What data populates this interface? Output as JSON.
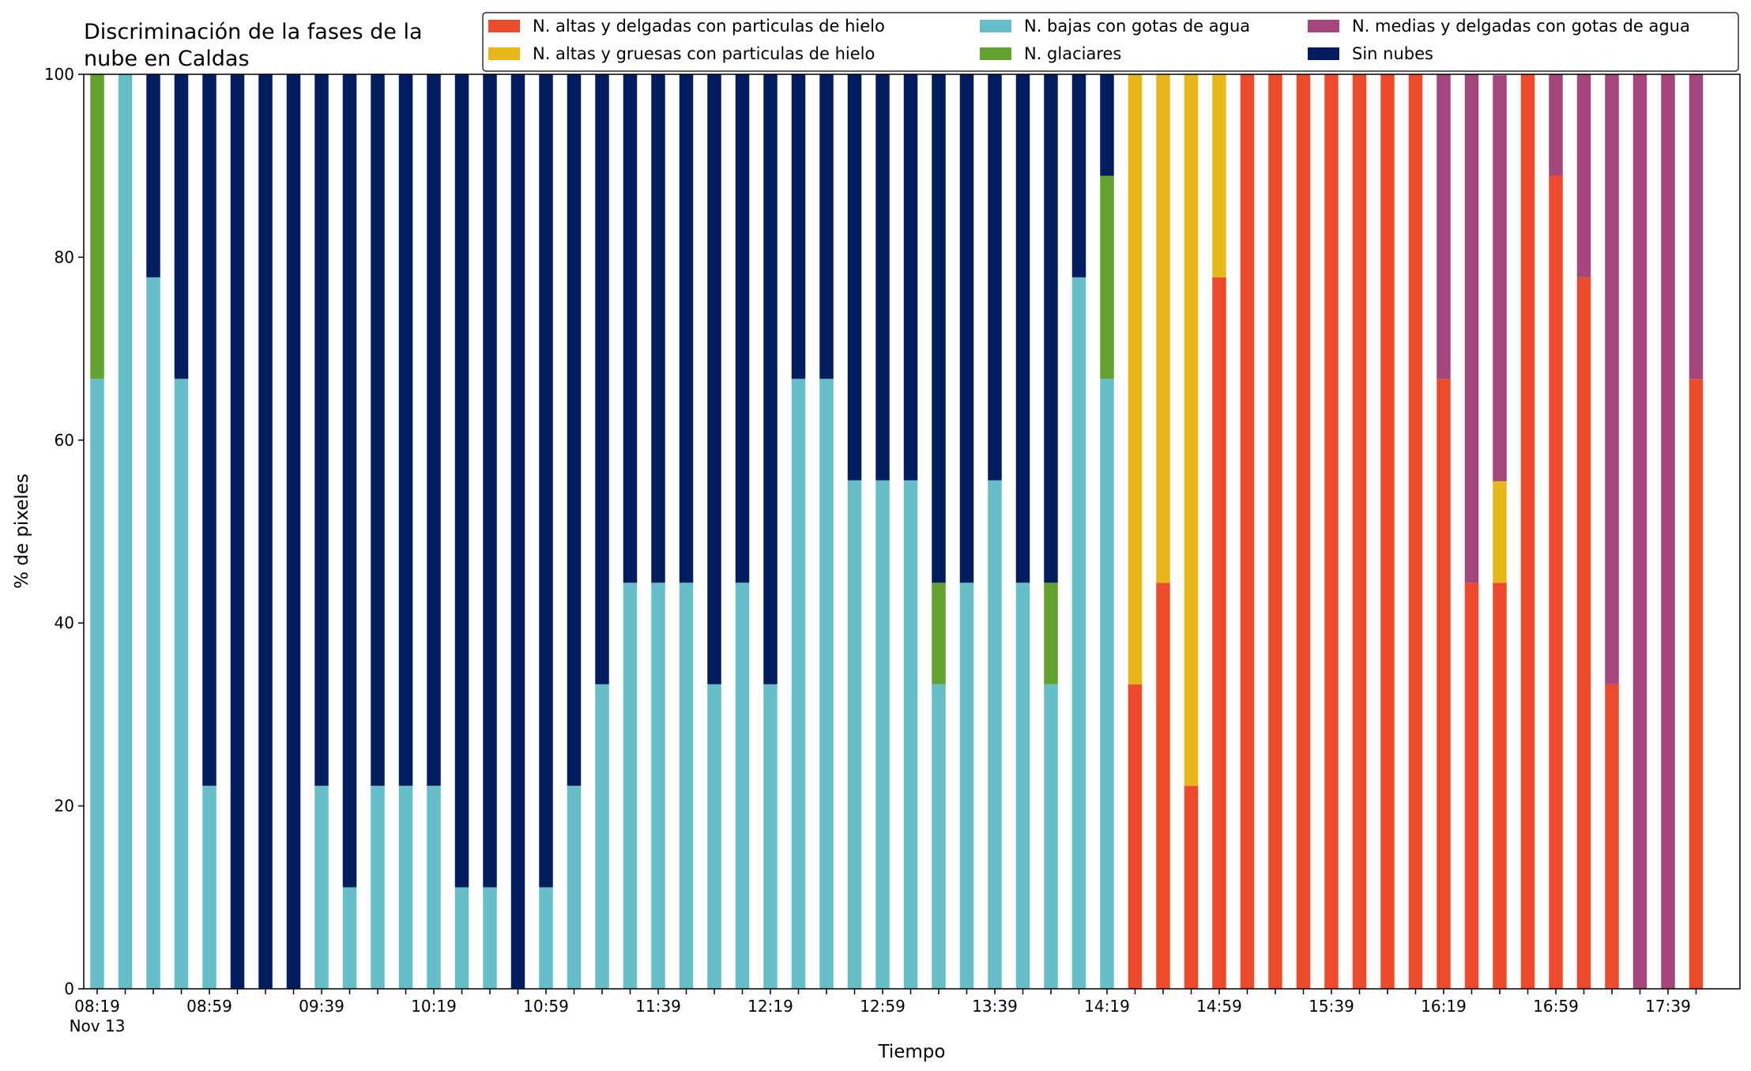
{
  "chart_data": {
    "type": "bar",
    "stacked": true,
    "title_lines": [
      "Discriminación de la fases de la",
      "nube en Caldas"
    ],
    "xlabel": "Tiempo",
    "ylabel": "% de pixeles",
    "ylim": [
      0,
      100
    ],
    "yticks": [
      0,
      20,
      40,
      60,
      80,
      100
    ],
    "grid": false,
    "legend_position": "top-right",
    "xtick_labels": [
      "08:19",
      "08:59",
      "09:39",
      "10:19",
      "10:59",
      "11:39",
      "12:19",
      "12:59",
      "13:39",
      "14:19",
      "14:59",
      "15:39",
      "16:19",
      "16:59",
      "17:39"
    ],
    "first_tick_sublabel": "Nov 13",
    "categories": [
      "08:19",
      "08:29",
      "08:39",
      "08:49",
      "08:59",
      "09:09",
      "09:19",
      "09:29",
      "09:39",
      "09:49",
      "09:59",
      "10:09",
      "10:19",
      "10:29",
      "10:39",
      "10:49",
      "10:59",
      "11:09",
      "11:19",
      "11:29",
      "11:39",
      "11:49",
      "11:59",
      "12:09",
      "12:19",
      "12:29",
      "12:39",
      "12:49",
      "12:59",
      "13:09",
      "13:19",
      "13:29",
      "13:39",
      "13:49",
      "13:59",
      "14:09",
      "14:19",
      "14:29",
      "14:39",
      "14:49",
      "14:59",
      "15:09",
      "15:19",
      "15:29",
      "15:39",
      "15:49",
      "15:59",
      "16:09",
      "16:19",
      "16:29",
      "16:39",
      "16:49",
      "16:59",
      "17:09",
      "17:19",
      "17:29",
      "17:39",
      "17:49"
    ],
    "series": [
      {
        "name": "N. altas y delgadas con particulas de hielo",
        "color": "#ec4a2b",
        "values": [
          0,
          0,
          0,
          0,
          0,
          0,
          0,
          0,
          0,
          0,
          0,
          0,
          0,
          0,
          0,
          0,
          0,
          0,
          0,
          0,
          0,
          0,
          0,
          0,
          0,
          0,
          0,
          0,
          0,
          0,
          0,
          0,
          0,
          0,
          0,
          0,
          0,
          33.3,
          44.4,
          22.2,
          77.8,
          100,
          100,
          100,
          100,
          100,
          100,
          100,
          66.7,
          44.4,
          44.4,
          100,
          88.9,
          77.8,
          33.3,
          0,
          0,
          66.7
        ]
      },
      {
        "name": "N. altas y gruesas con particulas de hielo",
        "color": "#e8b71a",
        "values": [
          0,
          0,
          0,
          0,
          0,
          0,
          0,
          0,
          0,
          0,
          0,
          0,
          0,
          0,
          0,
          0,
          0,
          0,
          0,
          0,
          0,
          0,
          0,
          0,
          0,
          0,
          0,
          0,
          0,
          0,
          0,
          0,
          0,
          0,
          0,
          0,
          0,
          66.7,
          55.6,
          77.8,
          22.2,
          0,
          0,
          0,
          0,
          0,
          0,
          0,
          0,
          0,
          11.1,
          0,
          0,
          0,
          0,
          0,
          0,
          0
        ]
      },
      {
        "name": "N. bajas con gotas de agua",
        "color": "#66bec9",
        "values": [
          66.7,
          100,
          77.8,
          66.7,
          22.2,
          0,
          0,
          0,
          22.2,
          11.1,
          22.2,
          22.2,
          22.2,
          11.1,
          11.1,
          0,
          11.1,
          22.2,
          33.3,
          44.4,
          44.4,
          44.4,
          33.3,
          44.4,
          33.3,
          66.7,
          66.7,
          55.6,
          55.6,
          55.6,
          33.3,
          44.4,
          55.6,
          44.4,
          33.3,
          77.8,
          66.7,
          0,
          0,
          0,
          0,
          0,
          0,
          0,
          0,
          0,
          0,
          0,
          0,
          0,
          0,
          0,
          0,
          0,
          0,
          0,
          0,
          0
        ]
      },
      {
        "name": "N. glaciares",
        "color": "#63a22e",
        "values": [
          33.3,
          0,
          0,
          0,
          0,
          0,
          0,
          0,
          0,
          0,
          0,
          0,
          0,
          0,
          0,
          0,
          0,
          0,
          0,
          0,
          0,
          0,
          0,
          0,
          0,
          0,
          0,
          0,
          0,
          0,
          11.1,
          0,
          0,
          0,
          11.1,
          0,
          22.2,
          0,
          0,
          0,
          0,
          0,
          0,
          0,
          0,
          0,
          0,
          0,
          0,
          0,
          0,
          0,
          0,
          0,
          0,
          0,
          0,
          0
        ]
      },
      {
        "name": "N. medias y delgadas con gotas de agua",
        "color": "#a4457c",
        "values": [
          0,
          0,
          0,
          0,
          0,
          0,
          0,
          0,
          0,
          0,
          0,
          0,
          0,
          0,
          0,
          0,
          0,
          0,
          0,
          0,
          0,
          0,
          0,
          0,
          0,
          0,
          0,
          0,
          0,
          0,
          0,
          0,
          0,
          0,
          0,
          0,
          0,
          0,
          0,
          0,
          0,
          0,
          0,
          0,
          0,
          0,
          0,
          0,
          33.3,
          55.6,
          44.4,
          0,
          11.1,
          22.2,
          66.7,
          100,
          100,
          33.3
        ]
      },
      {
        "name": "Sin nubes",
        "color": "#021e60",
        "values": [
          0,
          0,
          22.2,
          33.3,
          77.8,
          100,
          100,
          100,
          77.8,
          88.9,
          77.8,
          77.8,
          77.8,
          88.9,
          88.9,
          100,
          88.9,
          77.8,
          66.7,
          55.6,
          55.6,
          55.6,
          66.7,
          55.6,
          66.7,
          33.3,
          33.3,
          44.4,
          44.4,
          44.4,
          55.6,
          55.6,
          44.4,
          55.6,
          55.6,
          22.2,
          11.1,
          0,
          0,
          0,
          0,
          0,
          0,
          0,
          0,
          0,
          0,
          0,
          0,
          0,
          0,
          0,
          0,
          0,
          0,
          0,
          0,
          0
        ]
      }
    ]
  }
}
